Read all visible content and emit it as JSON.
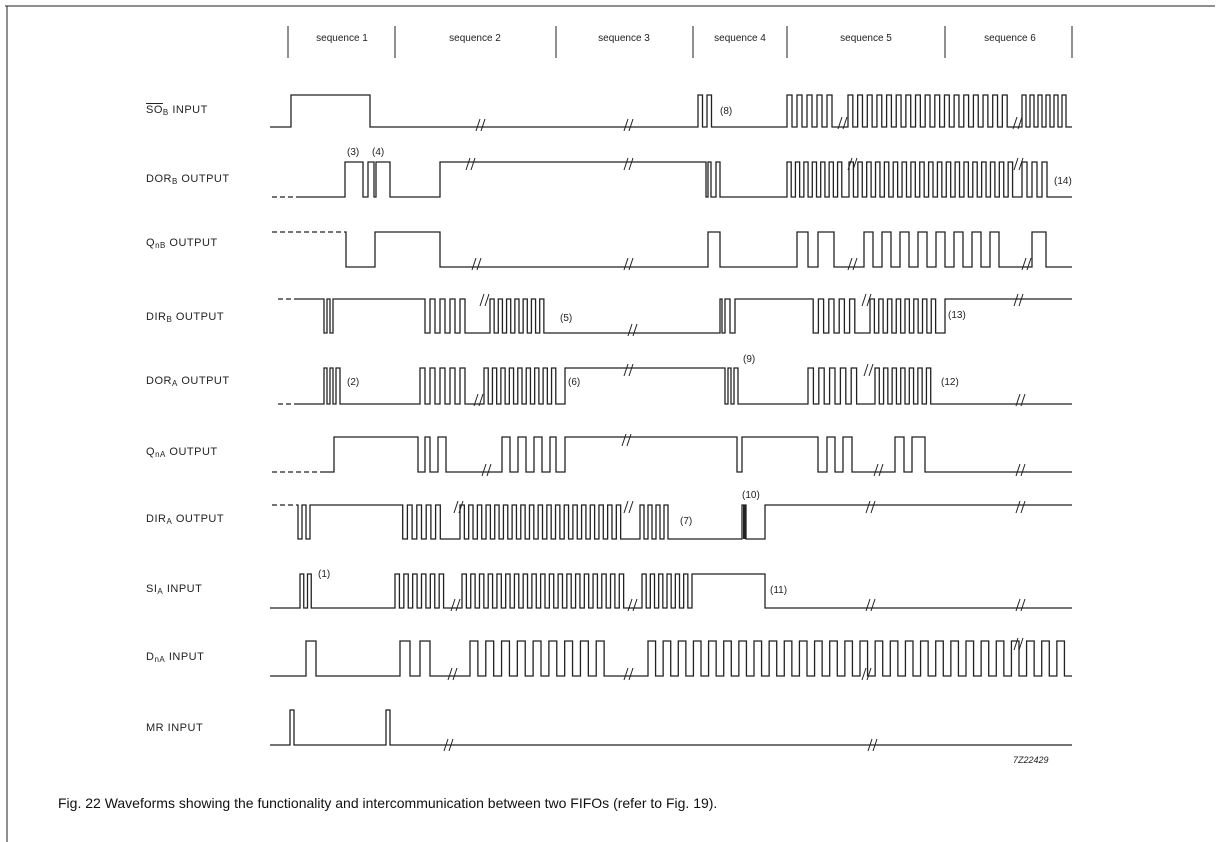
{
  "figure": {
    "caption": "Fig. 22  Waveforms showing the functionality and intercommunication between two FIFOs (refer to Fig. 19).",
    "figure_code": "7Z22429"
  },
  "sequences": [
    "sequence 1",
    "sequence 2",
    "sequence 3",
    "sequence 4",
    "sequence 5",
    "sequence 6"
  ],
  "signals": [
    {
      "id": "sob",
      "name": "SO",
      "sub": "B",
      "suffix": "INPUT",
      "overline": true
    },
    {
      "id": "dorb",
      "name": "DOR",
      "sub": "B",
      "suffix": "OUTPUT",
      "overline": false
    },
    {
      "id": "qnb",
      "name": "Q",
      "sub": "nB",
      "suffix": "OUTPUT",
      "overline": false
    },
    {
      "id": "dirb",
      "name": "DIR",
      "sub": "B",
      "suffix": "OUTPUT",
      "overline": false
    },
    {
      "id": "dora",
      "name": "DOR",
      "sub": "A",
      "suffix": "OUTPUT",
      "overline": false
    },
    {
      "id": "qna",
      "name": "Q",
      "sub": "nA",
      "suffix": "OUTPUT",
      "overline": false
    },
    {
      "id": "dira",
      "name": "DIR",
      "sub": "A",
      "suffix": "OUTPUT",
      "overline": false
    },
    {
      "id": "sia",
      "name": "SI",
      "sub": "A",
      "suffix": "INPUT",
      "overline": false
    },
    {
      "id": "dna",
      "name": "D",
      "sub": "nA",
      "suffix": "INPUT",
      "overline": false
    },
    {
      "id": "mr",
      "name": "MR",
      "sub": "",
      "suffix": "INPUT",
      "overline": false
    }
  ],
  "annotations": [
    "(1)",
    "(2)",
    "(3)",
    "(4)",
    "(5)",
    "(6)",
    "(7)",
    "(8)",
    "(9)",
    "(10)",
    "(11)",
    "(12)",
    "(13)",
    "(14)"
  ]
}
